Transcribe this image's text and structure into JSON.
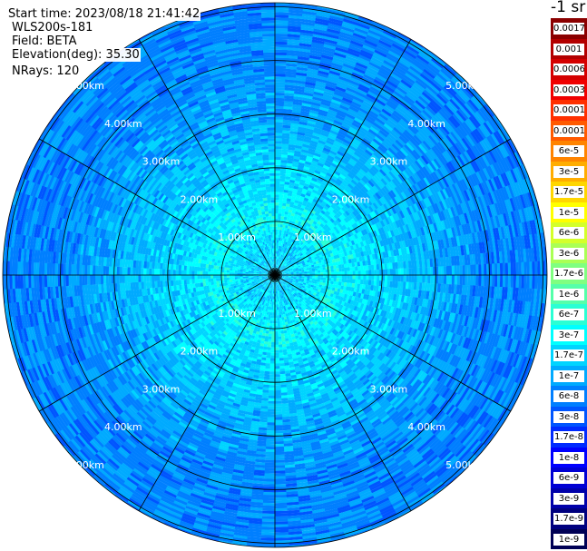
{
  "info": {
    "start_time": "Start time: 2023/08/18 21:41:42",
    "instrument": "WLS200s-181",
    "field": "Field: BETA",
    "elevation": "Elevation(deg): 35.30",
    "nrays": "NRays: 120"
  },
  "colorbar": {
    "unit": "-1 sr",
    "labels": [
      "0.0017",
      "0.001",
      "0.0006",
      "0.0003",
      "0.00017",
      "0.0001",
      "6e-5",
      "3e-5",
      "1.7e-5",
      "1e-5",
      "6e-6",
      "3e-6",
      "1.7e-6",
      "1e-6",
      "6e-7",
      "3e-7",
      "1.7e-7",
      "1e-7",
      "6e-8",
      "3e-8",
      "1.7e-8",
      "1e-8",
      "6e-9",
      "3e-9",
      "1.7e-9",
      "1e-9"
    ],
    "colors": [
      "#8b0000",
      "#b30000",
      "#d40000",
      "#f00000",
      "#ff3000",
      "#ff5a00",
      "#ff8400",
      "#ffad00",
      "#ffd600",
      "#ffff00",
      "#d4ff2a",
      "#aaff55",
      "#7fff80",
      "#55ffaa",
      "#2affd4",
      "#00ffff",
      "#00d4ff",
      "#00aaff",
      "#007fff",
      "#0055ff",
      "#002aff",
      "#0000ff",
      "#0000d4",
      "#0000aa",
      "#00007f",
      "#000055"
    ]
  },
  "chart_data": {
    "type": "heatmap",
    "projection": "polar (PPI)",
    "field": "BETA",
    "n_rays": 120,
    "elevation_deg": 35.3,
    "max_range_km": 5.0,
    "range_rings_km": [
      1.0,
      2.0,
      3.0,
      4.0,
      5.0
    ],
    "ring_labels": [
      "1.00km",
      "2.00km",
      "3.00km",
      "4.00km",
      "5.00km"
    ],
    "spokes_deg": [
      0,
      30,
      60,
      90,
      120,
      150,
      180,
      210,
      240,
      270,
      300,
      330
    ],
    "value_by_range_km": [
      {
        "range_km": 0.5,
        "value": "1.7e-7"
      },
      {
        "range_km": 1.0,
        "value": "3e-7"
      },
      {
        "range_km": 2.0,
        "value": "1.7e-7"
      },
      {
        "range_km": 3.0,
        "value": "1e-7"
      },
      {
        "range_km": 4.0,
        "value": "6e-8"
      },
      {
        "range_km": 5.0,
        "value": "6e-8"
      }
    ],
    "colorscale": "log, 1e-9 to 0.0017 sr-1"
  }
}
